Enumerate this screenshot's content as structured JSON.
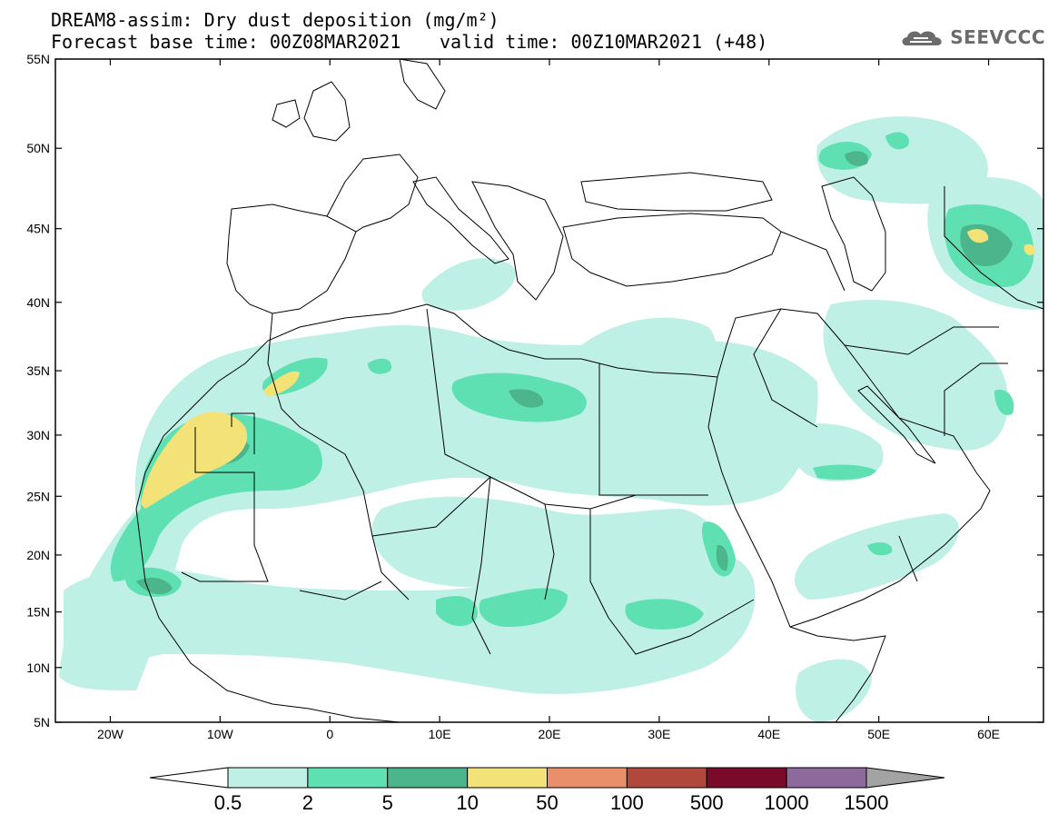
{
  "title": {
    "line1": "DREAM8-assim: Dry dust deposition (mg/m²)",
    "line2_base": "Forecast base time: 00Z08MAR2021",
    "line2_valid": "valid time: 00Z10MAR2021 (+48)"
  },
  "logo": {
    "text": "SEEVCCC",
    "icon": "cloud-logo-icon"
  },
  "map": {
    "lat_ticks": [
      "55N",
      "50N",
      "45N",
      "40N",
      "35N",
      "30N",
      "25N",
      "20N",
      "15N",
      "10N",
      "5N"
    ],
    "lat_values": [
      55,
      50,
      45,
      40,
      35,
      30,
      25,
      20,
      15,
      10,
      5
    ],
    "lon_ticks": [
      "20W",
      "10W",
      "0",
      "10E",
      "20E",
      "30E",
      "40E",
      "50E",
      "60E"
    ],
    "lon_values": [
      -20,
      -10,
      0,
      10,
      20,
      30,
      40,
      50,
      60
    ],
    "lon_range": [
      -25,
      65
    ],
    "lat_range": [
      5,
      55
    ]
  },
  "legend": {
    "labels": [
      "0.5",
      "2",
      "5",
      "10",
      "50",
      "100",
      "500",
      "1000",
      "1500"
    ],
    "colors": [
      "#ffffff",
      "#bff0e6",
      "#5ee0b3",
      "#4cb58b",
      "#f2e277",
      "#e9906b",
      "#b0493c",
      "#7a0a2a",
      "#8e6a9c",
      "#a3a3a3"
    ]
  }
}
